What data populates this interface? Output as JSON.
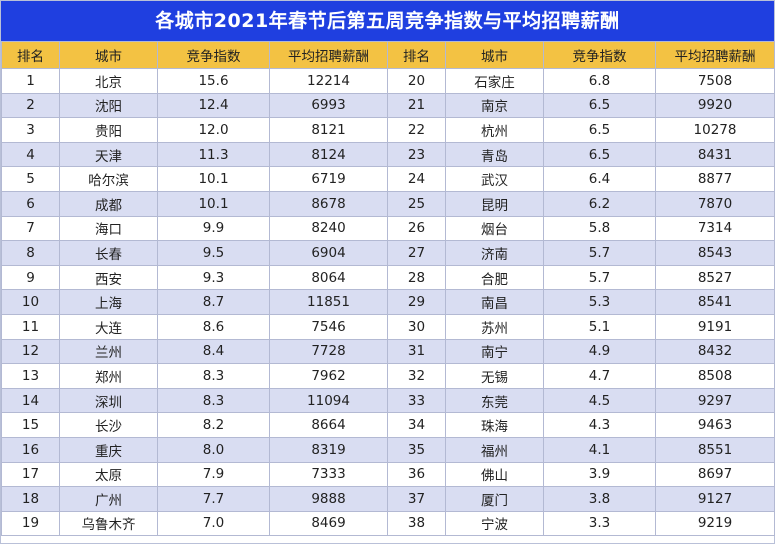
{
  "title": "各城市2021年春节后第五周竞争指数与平均招聘薪酬",
  "colors": {
    "title_bg": "#1f3fe0",
    "header_bg": "#f3c243",
    "stripe": "#d9ddf2"
  },
  "headers": [
    "排名",
    "城市",
    "竞争指数",
    "平均招聘薪酬",
    "排名",
    "城市",
    "竞争指数",
    "平均招聘薪酬"
  ],
  "rows": [
    [
      "1",
      "北京",
      "15.6",
      "12214",
      "20",
      "石家庄",
      "6.8",
      "7508"
    ],
    [
      "2",
      "沈阳",
      "12.4",
      "6993",
      "21",
      "南京",
      "6.5",
      "9920"
    ],
    [
      "3",
      "贵阳",
      "12.0",
      "8121",
      "22",
      "杭州",
      "6.5",
      "10278"
    ],
    [
      "4",
      "天津",
      "11.3",
      "8124",
      "23",
      "青岛",
      "6.5",
      "8431"
    ],
    [
      "5",
      "哈尔滨",
      "10.1",
      "6719",
      "24",
      "武汉",
      "6.4",
      "8877"
    ],
    [
      "6",
      "成都",
      "10.1",
      "8678",
      "25",
      "昆明",
      "6.2",
      "7870"
    ],
    [
      "7",
      "海口",
      "9.9",
      "8240",
      "26",
      "烟台",
      "5.8",
      "7314"
    ],
    [
      "8",
      "长春",
      "9.5",
      "6904",
      "27",
      "济南",
      "5.7",
      "8543"
    ],
    [
      "9",
      "西安",
      "9.3",
      "8064",
      "28",
      "合肥",
      "5.7",
      "8527"
    ],
    [
      "10",
      "上海",
      "8.7",
      "11851",
      "29",
      "南昌",
      "5.3",
      "8541"
    ],
    [
      "11",
      "大连",
      "8.6",
      "7546",
      "30",
      "苏州",
      "5.1",
      "9191"
    ],
    [
      "12",
      "兰州",
      "8.4",
      "7728",
      "31",
      "南宁",
      "4.9",
      "8432"
    ],
    [
      "13",
      "郑州",
      "8.3",
      "7962",
      "32",
      "无锡",
      "4.7",
      "8508"
    ],
    [
      "14",
      "深圳",
      "8.3",
      "11094",
      "33",
      "东莞",
      "4.5",
      "9297"
    ],
    [
      "15",
      "长沙",
      "8.2",
      "8664",
      "34",
      "珠海",
      "4.3",
      "9463"
    ],
    [
      "16",
      "重庆",
      "8.0",
      "8319",
      "35",
      "福州",
      "4.1",
      "8551"
    ],
    [
      "17",
      "太原",
      "7.9",
      "7333",
      "36",
      "佛山",
      "3.9",
      "8697"
    ],
    [
      "18",
      "广州",
      "7.7",
      "9888",
      "37",
      "厦门",
      "3.8",
      "9127"
    ],
    [
      "19",
      "乌鲁木齐",
      "7.0",
      "8469",
      "38",
      "宁波",
      "3.3",
      "9219"
    ]
  ]
}
